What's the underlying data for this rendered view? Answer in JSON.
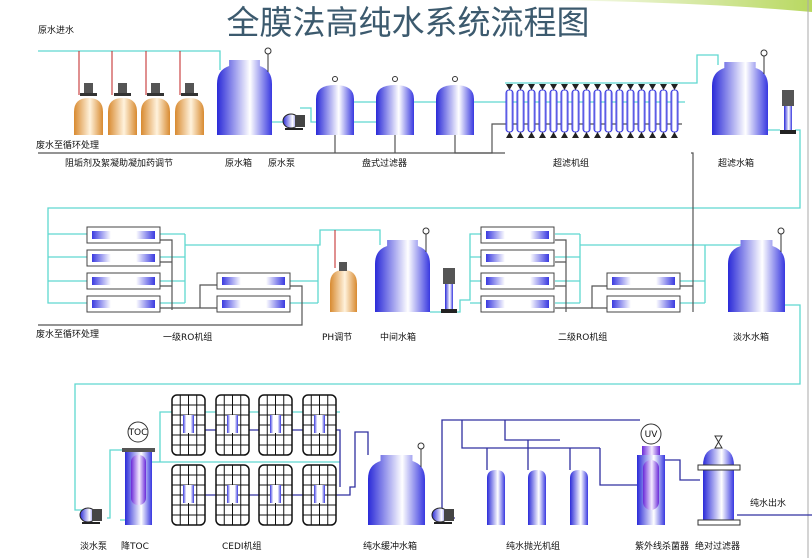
{
  "title": "全膜法高纯水系统流程图",
  "colors": {
    "pipe_water": "#5fd8d0",
    "pipe_waste": "#555555",
    "pipe_pure": "#3030a0",
    "tank_blue": "#2a2ad8",
    "tank_orange": "#d88a30",
    "dosing_line": "#c02020"
  },
  "row1": {
    "raw_water_in": "原水进水",
    "waste_to_recycle": "废水至循环处理",
    "dosing": "阻垢剂及絮凝助凝加药调节",
    "raw_tank": "原水箱",
    "raw_pump": "原水泵",
    "disc_filter": "盘式过滤器",
    "uf_unit": "超滤机组",
    "uf_tank": "超滤水箱"
  },
  "row2": {
    "waste_to_recycle": "废水至循环处理",
    "ro1": "一级RO机组",
    "ph": "PH调节",
    "mid_tank": "中间水箱",
    "ro2": "二级RO机组",
    "fresh_tank": "淡水水箱"
  },
  "row3": {
    "fresh_pump": "淡水泵",
    "toc": "降TOC",
    "toc_badge": "TOC",
    "cedi": "CEDI机组",
    "buffer_tank": "纯水缓冲水箱",
    "polish": "纯水抛光机组",
    "uv": "紫外线杀菌器",
    "uv_badge": "UV",
    "abs_filter": "绝对过滤器",
    "pure_out": "纯水出水"
  }
}
